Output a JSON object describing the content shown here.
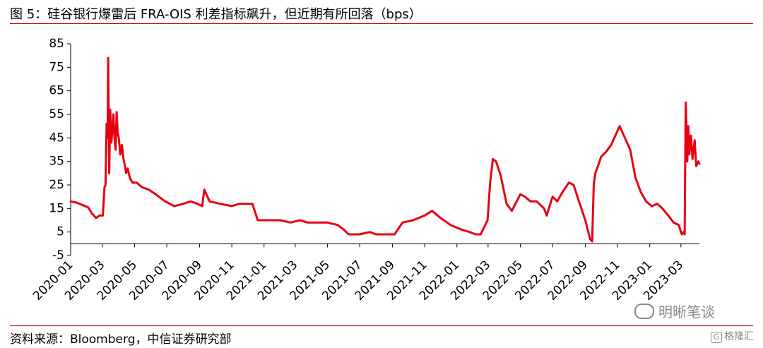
{
  "header": {
    "title": "图 5：硅谷银行爆雷后 FRA-OIS 利差指标飙升，但近期有所回落（bps）"
  },
  "footer": {
    "source": "资料来源：Bloomberg，中信证券研究部"
  },
  "watermark": {
    "text": "明晰笔谈"
  },
  "logo": {
    "text": "格隆汇",
    "mark": "G"
  },
  "chart_data": {
    "type": "line",
    "title": "",
    "xlabel": "",
    "ylabel": "",
    "ylim": [
      -5,
      85
    ],
    "yticks": [
      85,
      75,
      65,
      55,
      45,
      35,
      25,
      15,
      5,
      -5
    ],
    "xticks": [
      "2020-01",
      "2020-03",
      "2020-05",
      "2020-07",
      "2020-09",
      "2020-11",
      "2021-01",
      "2021-03",
      "2021-05",
      "2021-07",
      "2021-09",
      "2021-11",
      "2022-01",
      "2022-03",
      "2022-05",
      "2022-07",
      "2022-09",
      "2022-11",
      "2023-01",
      "2023-03"
    ],
    "grid": false,
    "legend": "none",
    "line_color": "#e60012",
    "series": [
      {
        "name": "",
        "x": [
          "2020-01-01",
          "2020-01-12",
          "2020-01-23",
          "2020-02-03",
          "2020-02-10",
          "2020-02-18",
          "2020-02-25",
          "2020-03-02",
          "2020-03-05",
          "2020-03-07",
          "2020-03-09",
          "2020-03-11",
          "2020-03-12",
          "2020-03-14",
          "2020-03-16",
          "2020-03-18",
          "2020-03-20",
          "2020-03-22",
          "2020-03-24",
          "2020-03-26",
          "2020-03-28",
          "2020-03-30",
          "2020-04-01",
          "2020-04-04",
          "2020-04-07",
          "2020-04-10",
          "2020-04-13",
          "2020-04-15",
          "2020-04-18",
          "2020-04-22",
          "2020-04-27",
          "2020-05-05",
          "2020-05-15",
          "2020-05-28",
          "2020-06-10",
          "2020-06-28",
          "2020-07-15",
          "2020-08-01",
          "2020-08-15",
          "2020-08-28",
          "2020-09-06",
          "2020-09-10",
          "2020-09-20",
          "2020-10-10",
          "2020-11-01",
          "2020-11-15",
          "2020-12-01",
          "2020-12-10",
          "2020-12-20",
          "2021-01-10",
          "2021-02-01",
          "2021-02-20",
          "2021-03-10",
          "2021-03-25",
          "2021-04-10",
          "2021-05-01",
          "2021-05-20",
          "2021-06-01",
          "2021-06-10",
          "2021-07-01",
          "2021-07-20",
          "2021-08-01",
          "2021-08-20",
          "2021-09-05",
          "2021-09-20",
          "2021-10-10",
          "2021-11-01",
          "2021-11-15",
          "2021-12-01",
          "2021-12-20",
          "2022-01-10",
          "2022-01-25",
          "2022-02-05",
          "2022-02-15",
          "2022-02-28",
          "2022-03-05",
          "2022-03-10",
          "2022-03-16",
          "2022-03-25",
          "2022-04-05",
          "2022-04-15",
          "2022-05-01",
          "2022-05-10",
          "2022-05-20",
          "2022-06-01",
          "2022-06-15",
          "2022-06-20",
          "2022-07-01",
          "2022-07-10",
          "2022-07-20",
          "2022-08-01",
          "2022-08-10",
          "2022-08-20",
          "2022-09-01",
          "2022-09-10",
          "2022-09-14",
          "2022-09-17",
          "2022-09-20",
          "2022-09-25",
          "2022-10-01",
          "2022-10-10",
          "2022-10-20",
          "2022-11-01",
          "2022-11-05",
          "2022-11-15",
          "2022-11-25",
          "2022-12-05",
          "2022-12-15",
          "2022-12-25",
          "2023-01-05",
          "2023-01-15",
          "2023-01-25",
          "2023-02-05",
          "2023-02-15",
          "2023-02-25",
          "2023-03-01",
          "2023-03-03",
          "2023-03-06",
          "2023-03-08",
          "2023-03-10",
          "2023-03-13",
          "2023-03-15",
          "2023-03-17",
          "2023-03-20",
          "2023-03-23",
          "2023-03-27",
          "2023-03-30",
          "2023-04-03",
          "2023-04-05"
        ],
        "values": [
          18,
          17.5,
          16.5,
          15.5,
          13,
          11,
          12,
          12,
          24,
          25,
          51,
          45,
          79,
          30,
          57,
          43,
          48,
          55,
          45,
          40,
          56,
          47,
          45,
          38,
          42,
          36,
          33,
          30,
          32,
          28,
          26,
          26,
          24,
          23,
          21,
          18,
          16,
          17,
          18,
          17,
          16,
          23,
          18,
          17,
          16,
          17,
          17,
          17,
          10,
          10,
          10,
          9,
          10,
          9,
          9,
          9,
          8,
          6,
          4,
          4,
          5,
          4,
          4,
          4,
          9,
          10,
          12,
          14,
          11,
          8,
          6,
          5,
          4,
          4,
          10,
          26,
          36,
          35,
          29,
          17,
          14,
          21,
          20,
          18,
          18,
          15,
          12,
          20,
          18,
          22,
          26,
          25,
          18,
          10,
          2,
          1,
          25,
          30,
          33,
          37,
          39,
          42,
          48,
          50,
          45,
          40,
          28,
          22,
          18,
          16,
          17,
          15,
          12,
          9,
          8,
          5,
          4,
          5,
          4,
          60,
          35,
          50,
          38,
          46,
          36,
          44,
          33,
          35,
          34
        ]
      }
    ]
  }
}
